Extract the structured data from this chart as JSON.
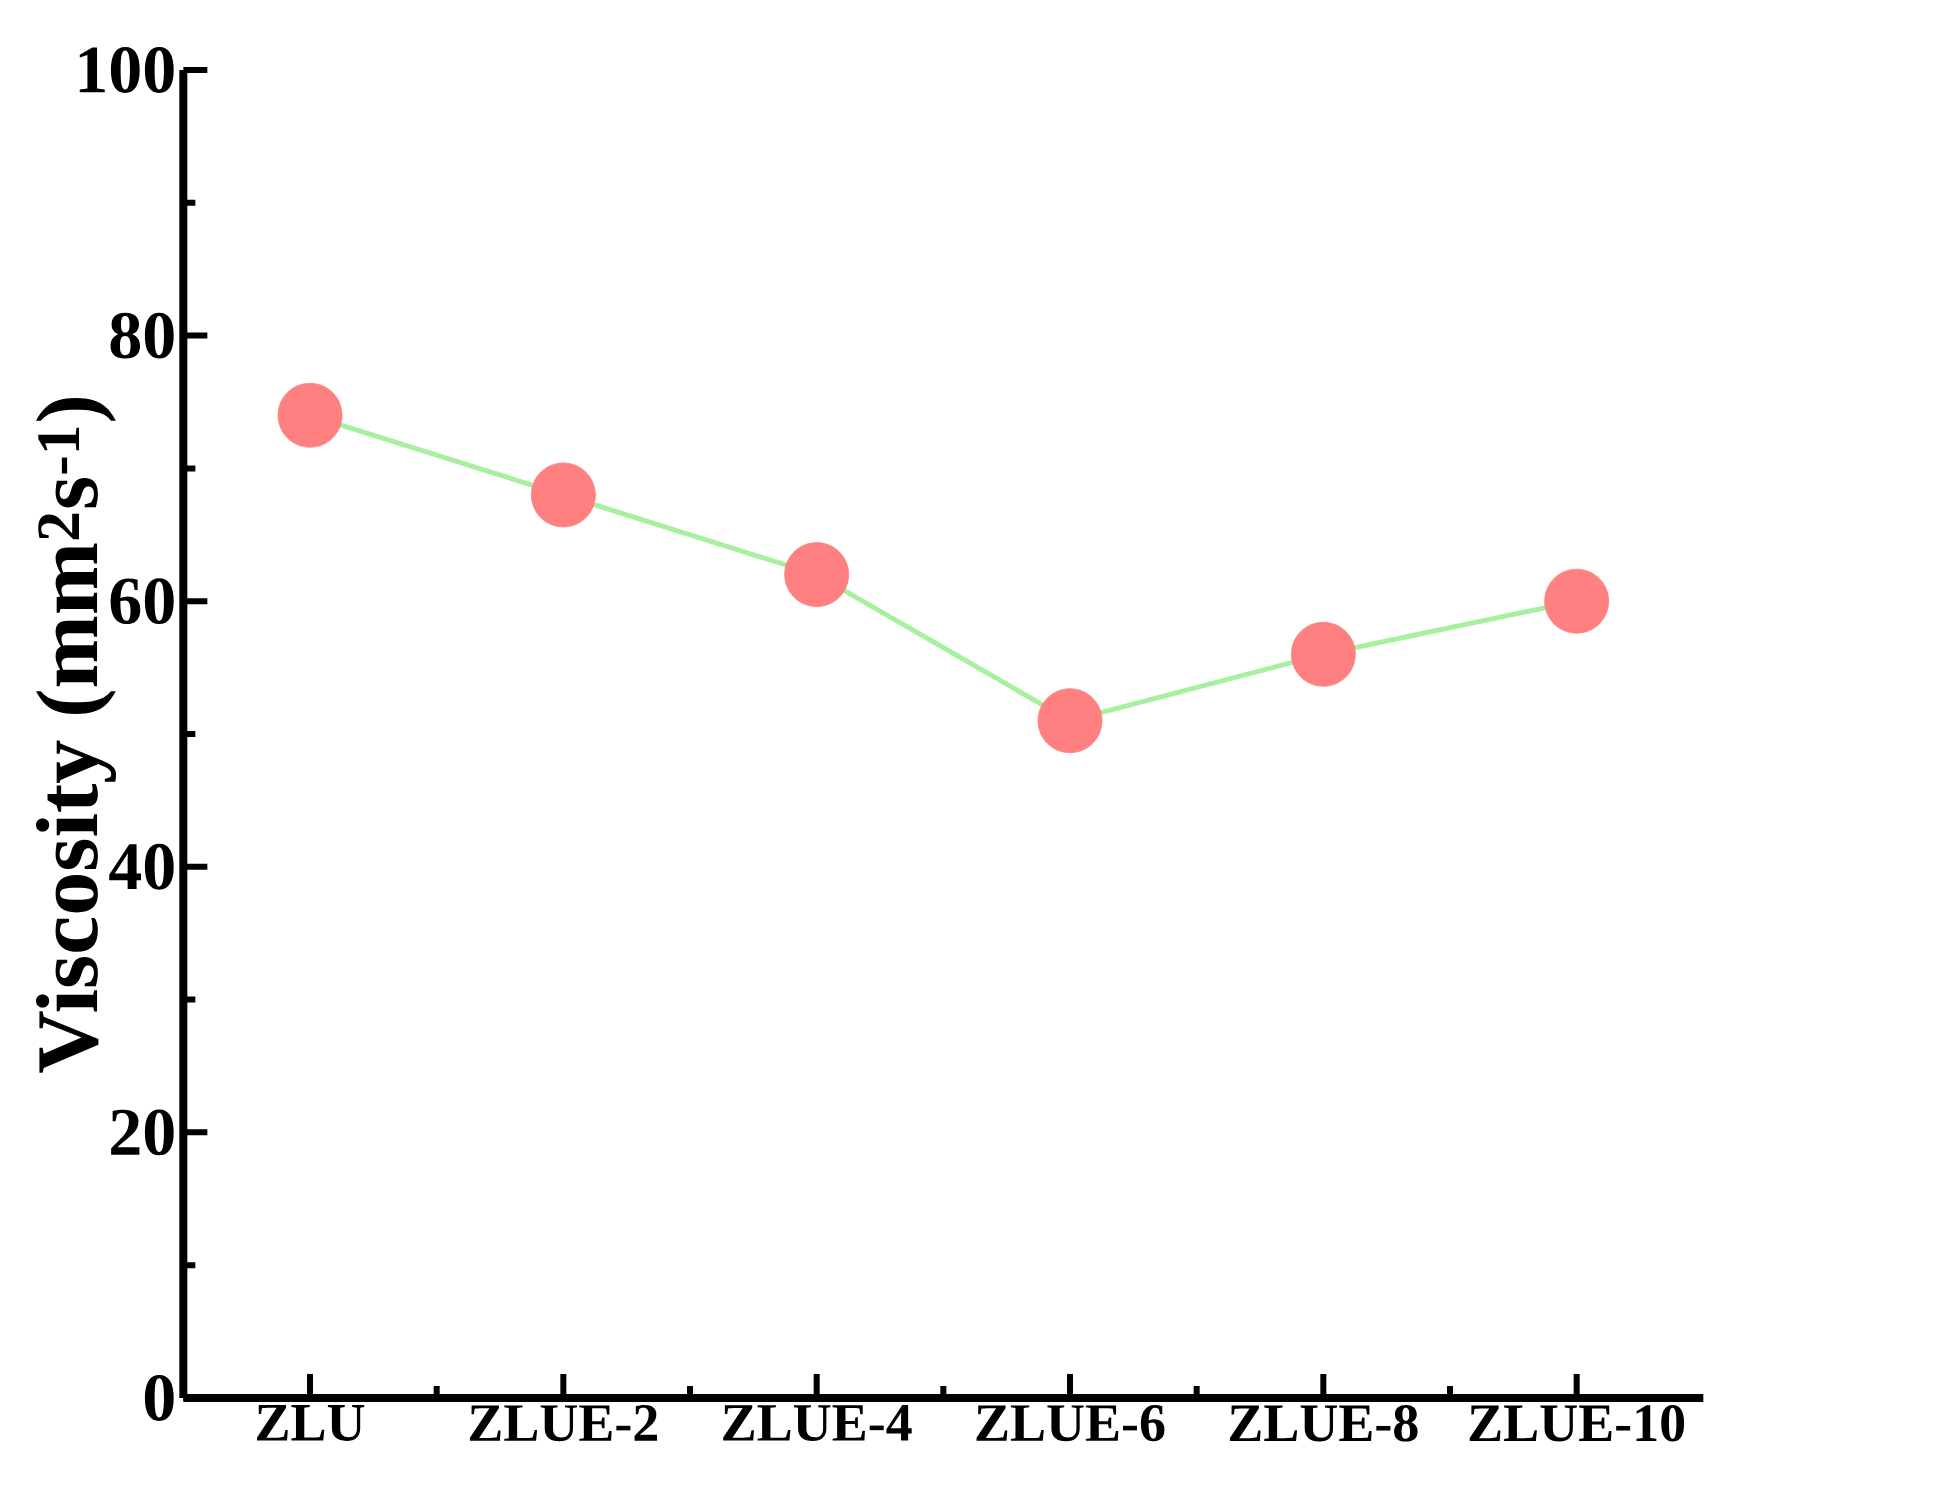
{
  "chart_data": {
    "type": "line",
    "ylabel": "Viscosity (mm$^{2}$s$^{-1}$)",
    "categories": [
      "ZLU",
      "ZLUE-2",
      "ZLUE-4",
      "ZLUE-6",
      "ZLUE-8",
      "ZLUE-10"
    ],
    "series": [
      {
        "color": "#a8f0a0",
        "colors": [
          "#ff8080",
          "#ff8080",
          "#ff8080",
          "#ff8080",
          "#ff8080",
          "#ff8080"
        ],
        "values": [
          74,
          68,
          62,
          51,
          56,
          60
        ]
      }
    ],
    "marker": "circle",
    "line_style": "solid",
    "ylim": [
      0,
      100
    ],
    "yticks": [
      0,
      20,
      40,
      60,
      80,
      100
    ],
    "grid": false
  }
}
